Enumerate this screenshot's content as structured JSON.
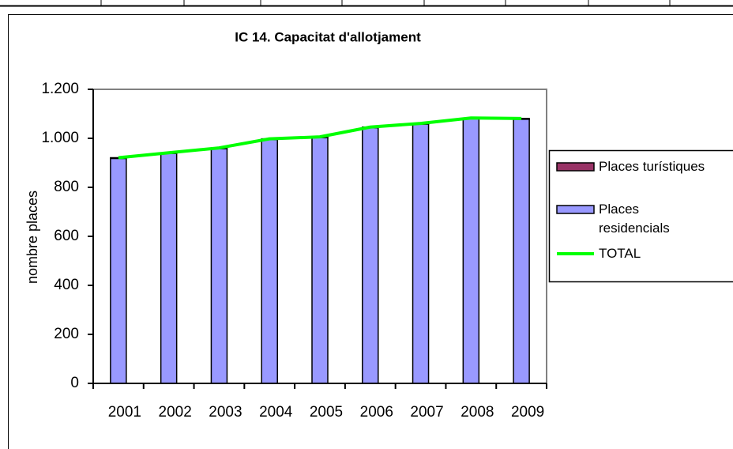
{
  "chart_data": {
    "type": "bar",
    "title": "IC 14. Capacitat d'allotjament",
    "y_label": "nombre places",
    "categories": [
      "2001",
      "2002",
      "2003",
      "2004",
      "2005",
      "2006",
      "2007",
      "2008",
      "2009"
    ],
    "stacked": true,
    "series": [
      {
        "name": "Places residencials",
        "type": "bar",
        "color": "#9999ff",
        "values": [
          918,
          938,
          958,
          995,
          1003,
          1043,
          1058,
          1080,
          1078
        ]
      },
      {
        "name": "Places turístiques",
        "type": "bar",
        "color": "#993366",
        "values": [
          3,
          3,
          3,
          3,
          3,
          3,
          3,
          3,
          3
        ]
      },
      {
        "name": "TOTAL",
        "type": "line",
        "color": "#00ff00",
        "values": [
          921,
          941,
          961,
          998,
          1006,
          1046,
          1061,
          1083,
          1081
        ]
      }
    ],
    "legend_order": [
      1,
      0,
      2
    ],
    "ylim": [
      0,
      1200
    ],
    "yticks": [
      0,
      200,
      400,
      600,
      800,
      {
        "value": 1000,
        "label": "1.000"
      },
      {
        "value": 1200,
        "label": "1.200"
      }
    ],
    "grid": false,
    "legend": "right"
  }
}
